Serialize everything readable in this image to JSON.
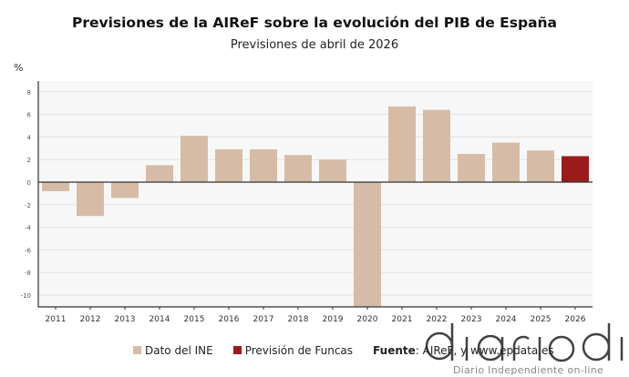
{
  "chart_data": {
    "type": "bar",
    "title": "Previsiones de la AIReF sobre la evolución del PIB de España",
    "subtitle": "Previsiones de abril de 2026",
    "ylabel": "%",
    "ylim": [
      -11,
      9
    ],
    "yticks": [
      8,
      6,
      4,
      2,
      0,
      -2,
      -4,
      -6,
      -8,
      -10
    ],
    "grid": true,
    "categories": [
      "2011",
      "2012",
      "2013",
      "2014",
      "2015",
      "2016",
      "2017",
      "2018",
      "2019",
      "2020",
      "2021",
      "2022",
      "2023",
      "2024",
      "2025",
      "2026"
    ],
    "values": [
      -0.8,
      -3.0,
      -1.4,
      1.5,
      4.1,
      2.9,
      2.9,
      2.4,
      2.0,
      -11.0,
      6.7,
      6.4,
      2.5,
      3.5,
      2.8,
      2.3
    ],
    "series_of_point": [
      "ine",
      "ine",
      "ine",
      "ine",
      "ine",
      "ine",
      "ine",
      "ine",
      "ine",
      "ine",
      "ine",
      "ine",
      "ine",
      "ine",
      "ine",
      "funcas"
    ],
    "legend": [
      {
        "key": "ine",
        "label": "Dato del INE",
        "color": "#d6bca6"
      },
      {
        "key": "funcas",
        "label": "Previsión de Funcas",
        "color": "#9b1b1b"
      }
    ],
    "legend_position": "bottom",
    "source_label": "Fuente",
    "source_text": ": AIReF, y www.epdata.es"
  },
  "watermark": {
    "logo": "diario dia",
    "tagline": "Diario Independiente on-line"
  }
}
